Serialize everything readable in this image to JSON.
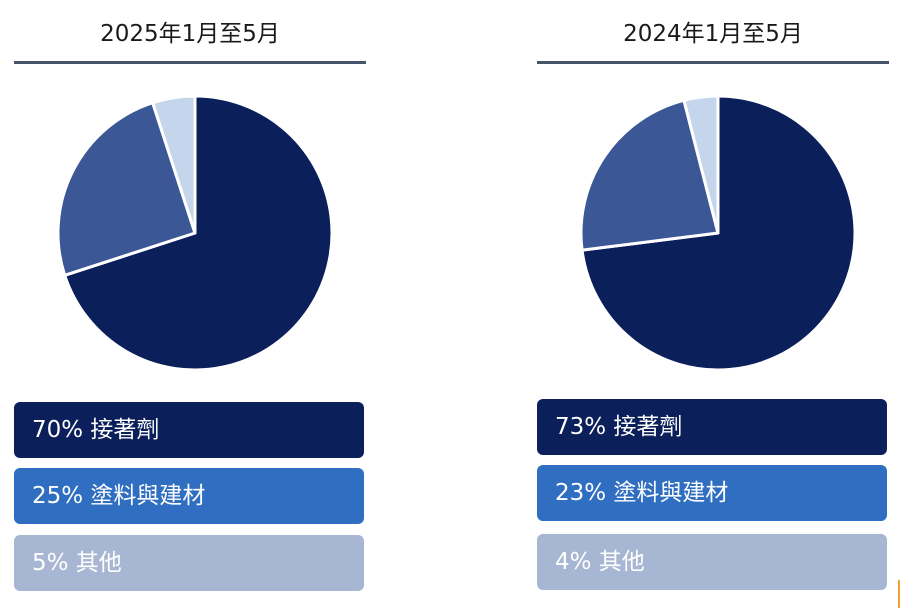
{
  "chart_data": [
    {
      "type": "pie",
      "title": "2025年1月至5月",
      "categories": [
        "接著劑",
        "塗料與建材",
        "其他"
      ],
      "values": [
        70,
        25,
        5
      ],
      "legend_labels": [
        "70% 接著劑",
        "25% 塗料與建材",
        "5% 其他"
      ],
      "colors": [
        "#0b1f5a",
        "#3b5796",
        "#c5d6ec"
      ],
      "legend_box_colors": [
        "#0b1f5a",
        "#2f6ec0",
        "#a7b7d3"
      ]
    },
    {
      "type": "pie",
      "title": "2024年1月至5月",
      "categories": [
        "接著劑",
        "塗料與建材",
        "其他"
      ],
      "values": [
        73,
        23,
        4
      ],
      "legend_labels": [
        "73% 接著劑",
        "23% 塗料與建材",
        "4% 其他"
      ],
      "colors": [
        "#0b1f5a",
        "#3b5796",
        "#c5d6ec"
      ],
      "legend_box_colors": [
        "#0b1f5a",
        "#2f6ec0",
        "#a7b7d3"
      ]
    }
  ]
}
